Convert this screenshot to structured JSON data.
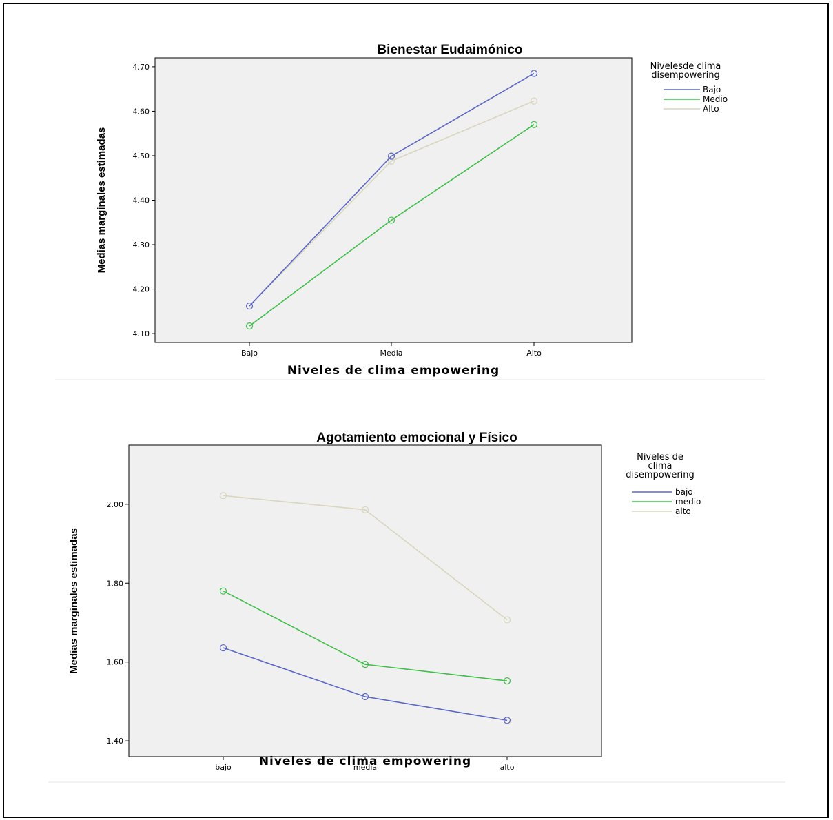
{
  "chart_data": [
    {
      "type": "line",
      "title": "Bienestar Eudaimónico",
      "xlabel": "Niveles de clima empowering",
      "ylabel": "Medias marginales estimadas",
      "categories": [
        "Bajo",
        "Media",
        "Alto"
      ],
      "ylim": [
        4.08,
        4.72
      ],
      "yticks": [
        "4.10",
        "4.20",
        "4.30",
        "4.40",
        "4.50",
        "4.60",
        "4.70"
      ],
      "legend": {
        "title_lines": [
          "Nivelesde clima",
          "disempowering"
        ],
        "placement": "right"
      },
      "series": [
        {
          "name": "Bajo",
          "color": "#5a66c8",
          "values": [
            4.162,
            4.499,
            4.685
          ]
        },
        {
          "name": "Medio",
          "color": "#3fbf4a",
          "values": [
            4.117,
            4.355,
            4.57
          ]
        },
        {
          "name": "Alto",
          "color": "#d8d6bd",
          "values": [
            4.162,
            4.488,
            4.623
          ]
        }
      ],
      "grid": false
    },
    {
      "type": "line",
      "title": "Agotamiento emocional y Físico",
      "xlabel": "Niveles de clima empowering",
      "ylabel": "Medias marginales estimadas",
      "categories": [
        "bajo",
        "media",
        "alto"
      ],
      "ylim": [
        1.36,
        2.15
      ],
      "yticks": [
        "1.40",
        "1.60",
        "1.80",
        "2.00"
      ],
      "legend": {
        "title_lines": [
          "Niveles de",
          "clima",
          "disempowering"
        ],
        "placement": "right"
      },
      "series": [
        {
          "name": "bajo",
          "color": "#5a66c8",
          "values": [
            1.636,
            1.512,
            1.452
          ]
        },
        {
          "name": "medio",
          "color": "#3fbf4a",
          "values": [
            1.78,
            1.594,
            1.552
          ]
        },
        {
          "name": "alto",
          "color": "#d8d6bd",
          "values": [
            2.022,
            1.986,
            1.707
          ]
        }
      ],
      "grid": false
    }
  ],
  "colors": {
    "plot_background": "#f0f0f0",
    "frame": "#000000"
  }
}
